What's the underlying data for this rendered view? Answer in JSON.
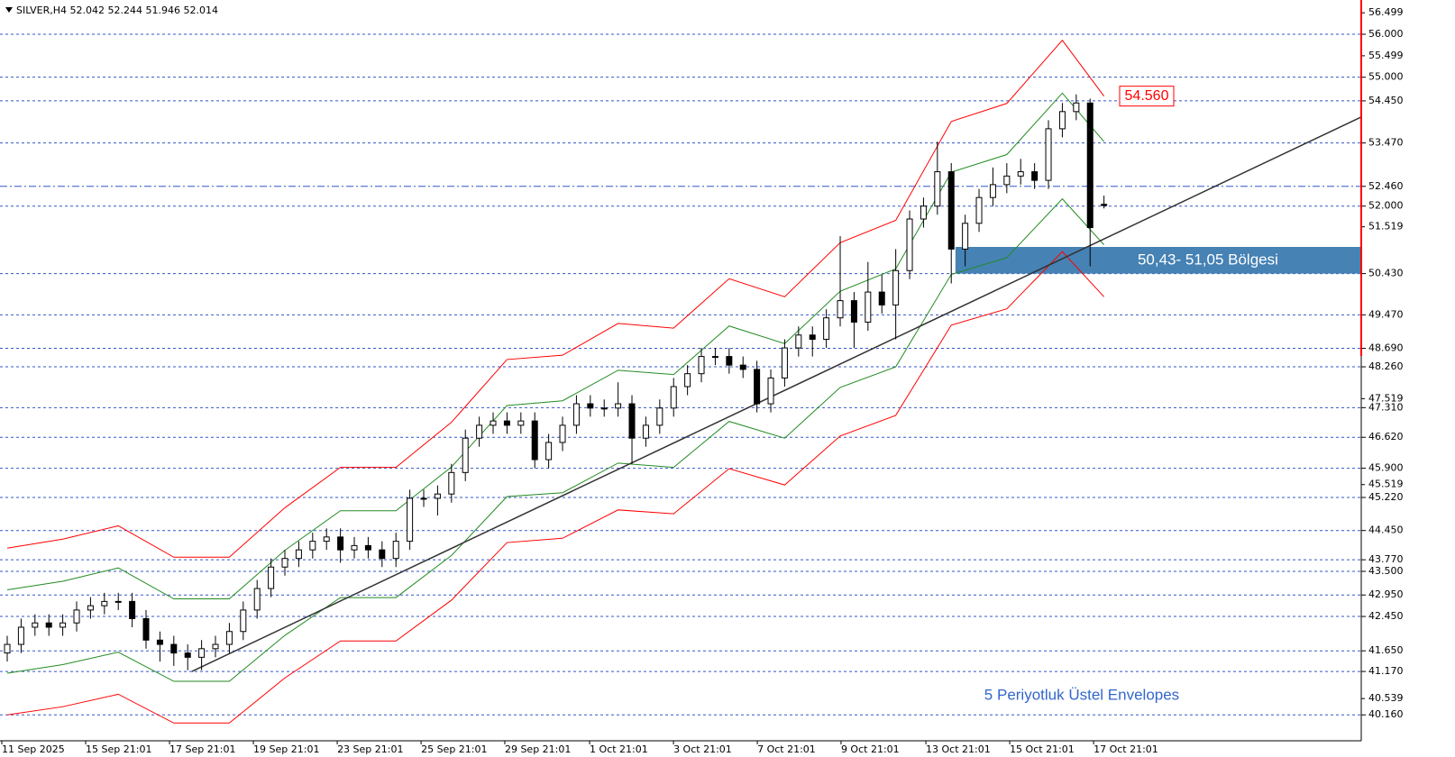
{
  "chart_data": {
    "type": "candlestick",
    "header": "SILVER,H4  52.042 52.244 51.946 52.014",
    "xlim": [
      -0.52,
      97.53
    ],
    "ylim": [
      39.557,
      56.797
    ],
    "xticks": [
      {
        "value": -0.39,
        "label": "11 Sep 2025"
      },
      {
        "value": 5.65,
        "label": "15 Sep 21:01"
      },
      {
        "value": 11.69,
        "label": "17 Sep 21:01"
      },
      {
        "value": 17.73,
        "label": "19 Sep 21:01"
      },
      {
        "value": 23.77,
        "label": "23 Sep 21:01"
      },
      {
        "value": 29.81,
        "label": "25 Sep 21:01"
      },
      {
        "value": 35.84,
        "label": "29 Sep 21:01"
      },
      {
        "value": 41.95,
        "label": "1 Oct 21:01"
      },
      {
        "value": 47.99,
        "label": "3 Oct 21:01"
      },
      {
        "value": 54.03,
        "label": "7 Oct 21:01"
      },
      {
        "value": 60.06,
        "label": "9 Oct 21:01"
      },
      {
        "value": 66.17,
        "label": "13 Oct 21:01"
      },
      {
        "value": 72.21,
        "label": "15 Oct 21:01"
      },
      {
        "value": 78.25,
        "label": "17 Oct 21:01"
      }
    ],
    "yticks": [
      56.499,
      55.499,
      51.519,
      47.519,
      45.519,
      40.539
    ],
    "open": [
      41.6,
      41.8,
      42.2,
      42.3,
      42.2,
      42.3,
      42.6,
      42.7,
      42.8,
      42.8,
      42.4,
      41.9,
      41.8,
      41.6,
      41.5,
      41.7,
      41.8,
      42.1,
      42.6,
      43.1,
      43.6,
      43.8,
      44.0,
      44.2,
      44.3,
      44.0,
      44.1,
      44.0,
      43.8,
      44.2,
      45.2,
      45.2,
      45.3,
      45.8,
      46.6,
      46.9,
      47.0,
      46.9,
      47.0,
      46.1,
      46.5,
      46.9,
      47.4,
      47.3,
      47.3,
      47.4,
      46.6,
      46.9,
      47.3,
      47.8,
      48.1,
      48.5,
      48.5,
      48.3,
      48.2,
      47.4,
      48.0,
      48.7,
      49.0,
      48.9,
      49.4,
      49.8,
      49.3,
      50.0,
      49.7,
      50.5,
      51.7,
      52.0,
      52.8,
      51.0,
      51.6,
      52.2,
      52.5,
      52.7,
      52.8,
      52.6,
      53.8,
      54.2,
      54.4,
      52.042
    ],
    "high": [
      42.0,
      42.4,
      42.5,
      42.5,
      42.5,
      42.8,
      42.9,
      43.0,
      43.0,
      43.0,
      42.6,
      42.1,
      42.0,
      41.8,
      41.9,
      42.0,
      42.3,
      42.8,
      43.3,
      43.8,
      44.0,
      44.2,
      44.4,
      44.5,
      44.5,
      44.3,
      44.3,
      44.2,
      44.4,
      45.4,
      45.4,
      45.5,
      46.0,
      46.8,
      47.1,
      47.2,
      47.2,
      47.2,
      47.2,
      46.7,
      47.1,
      47.6,
      47.6,
      47.5,
      47.9,
      47.6,
      47.1,
      47.5,
      48.0,
      48.3,
      48.7,
      48.7,
      48.7,
      48.5,
      48.4,
      48.2,
      48.9,
      49.2,
      49.2,
      49.6,
      51.3,
      50.0,
      50.7,
      50.4,
      51.0,
      51.9,
      52.2,
      53.5,
      53.0,
      51.8,
      52.4,
      52.9,
      53.0,
      53.1,
      53.0,
      54.0,
      54.4,
      54.6,
      54.5,
      52.244
    ],
    "low": [
      41.4,
      41.6,
      42.0,
      42.0,
      42.0,
      42.1,
      42.4,
      42.5,
      42.6,
      42.2,
      41.7,
      41.4,
      41.3,
      41.2,
      41.2,
      41.5,
      41.6,
      41.9,
      42.4,
      42.9,
      43.4,
      43.6,
      43.8,
      44.0,
      43.7,
      43.8,
      43.8,
      43.6,
      43.6,
      44.0,
      45.0,
      44.8,
      45.1,
      45.6,
      46.4,
      46.7,
      46.7,
      46.7,
      45.9,
      45.9,
      46.3,
      46.7,
      47.1,
      47.1,
      47.1,
      46.0,
      46.4,
      46.7,
      47.1,
      47.6,
      47.9,
      48.3,
      48.1,
      48.0,
      47.2,
      47.2,
      47.8,
      48.5,
      48.5,
      48.7,
      49.2,
      48.7,
      49.1,
      49.5,
      48.9,
      50.3,
      51.5,
      51.8,
      50.2,
      50.6,
      51.4,
      52.0,
      52.3,
      52.5,
      52.4,
      52.4,
      53.6,
      54.0,
      50.6,
      51.946
    ],
    "close": [
      41.8,
      42.2,
      42.3,
      42.2,
      42.3,
      42.6,
      42.7,
      42.8,
      42.8,
      42.4,
      41.9,
      41.8,
      41.6,
      41.5,
      41.7,
      41.8,
      42.1,
      42.6,
      43.1,
      43.6,
      43.8,
      44.0,
      44.2,
      44.3,
      44.0,
      44.1,
      44.0,
      43.8,
      44.2,
      45.2,
      45.2,
      45.3,
      45.8,
      46.6,
      46.9,
      47.0,
      46.9,
      47.0,
      46.1,
      46.5,
      46.9,
      47.4,
      47.3,
      47.3,
      47.4,
      46.6,
      46.9,
      47.3,
      47.8,
      48.1,
      48.5,
      48.5,
      48.3,
      48.2,
      47.4,
      48.0,
      48.7,
      49.0,
      48.9,
      49.4,
      49.8,
      49.3,
      50.0,
      49.7,
      50.5,
      51.7,
      52.0,
      52.8,
      51.0,
      51.6,
      52.2,
      52.5,
      52.7,
      52.8,
      52.6,
      53.8,
      54.2,
      54.4,
      51.5,
      52.014
    ],
    "up_color": "#ffffff",
    "down_color": "#000000",
    "envelopes": {
      "x": [
        0,
        4,
        8,
        12,
        16,
        20,
        24,
        28,
        32,
        36,
        40,
        44,
        48,
        52,
        56,
        60,
        64,
        68,
        72,
        76,
        79
      ],
      "series": [
        {
          "color": "#ff0000",
          "values": [
            44.04,
            44.25,
            44.56,
            43.83,
            43.83,
            44.98,
            45.92,
            45.92,
            46.97,
            48.43,
            48.53,
            49.27,
            49.16,
            50.31,
            49.89,
            51.15,
            51.67,
            53.97,
            54.39,
            55.86,
            54.56
          ]
        },
        {
          "color": "#228b22",
          "values": [
            43.07,
            43.27,
            43.58,
            42.86,
            42.86,
            43.99,
            44.91,
            44.91,
            45.93,
            47.36,
            47.47,
            48.18,
            48.08,
            49.21,
            48.8,
            50.02,
            50.54,
            52.79,
            53.2,
            54.63,
            53.5
          ]
        },
        {
          "color": "#228b22",
          "values": [
            41.13,
            41.33,
            41.62,
            40.94,
            40.94,
            42.01,
            42.89,
            42.89,
            43.87,
            45.24,
            45.33,
            46.02,
            45.92,
            46.99,
            46.6,
            47.78,
            48.26,
            50.41,
            50.8,
            52.17,
            51.1
          ]
        },
        {
          "color": "#ff0000",
          "values": [
            40.16,
            40.35,
            40.64,
            39.97,
            39.97,
            41.02,
            41.88,
            41.88,
            42.83,
            44.17,
            44.27,
            44.93,
            44.84,
            45.89,
            45.51,
            46.65,
            47.13,
            49.23,
            49.61,
            50.94,
            49.89
          ]
        }
      ]
    },
    "price_label": {
      "value": 54.56,
      "label": "54.560"
    },
    "levels": [
      {
        "value": 56,
        "label": "56.000"
      },
      {
        "value": 55,
        "label": "55.000"
      },
      {
        "value": 54.45,
        "label": "54.450"
      },
      {
        "value": 53.47,
        "label": "53.470"
      },
      {
        "value": 52.46,
        "label": "52.460"
      },
      {
        "value": 52,
        "label": "52.000"
      },
      {
        "value": 50.43,
        "label": "50.430"
      },
      {
        "value": 49.47,
        "label": "49.470"
      },
      {
        "value": 48.69,
        "label": "48.690"
      },
      {
        "value": 48.26,
        "label": "48.260"
      },
      {
        "value": 47.31,
        "label": "47.310"
      },
      {
        "value": 46.62,
        "label": "46.620"
      },
      {
        "value": 45.9,
        "label": "45.900"
      },
      {
        "value": 45.22,
        "label": "45.220"
      },
      {
        "value": 44.45,
        "label": "44.450"
      },
      {
        "value": 43.77,
        "label": "43.770"
      },
      {
        "value": 43.5,
        "label": "43.500"
      },
      {
        "value": 42.95,
        "label": "42.950"
      },
      {
        "value": 42.45,
        "label": "42.450"
      },
      {
        "value": 41.65,
        "label": "41.650"
      },
      {
        "value": 41.17,
        "label": "41.170"
      },
      {
        "value": 40.16,
        "label": "40.160"
      }
    ],
    "level_color": "#3355cc",
    "trendline": {
      "x": [
        13.3,
        97.5
      ],
      "y": [
        41.17,
        54.07
      ],
      "color": "#333333"
    },
    "zone": {
      "label": "50,43- 51,05 Bölgesi",
      "low": 50.43,
      "high": 51.05,
      "x_start": 68.3,
      "color": "#4682b4"
    },
    "note": "5 Periyotluk Üstel Envelopes"
  }
}
